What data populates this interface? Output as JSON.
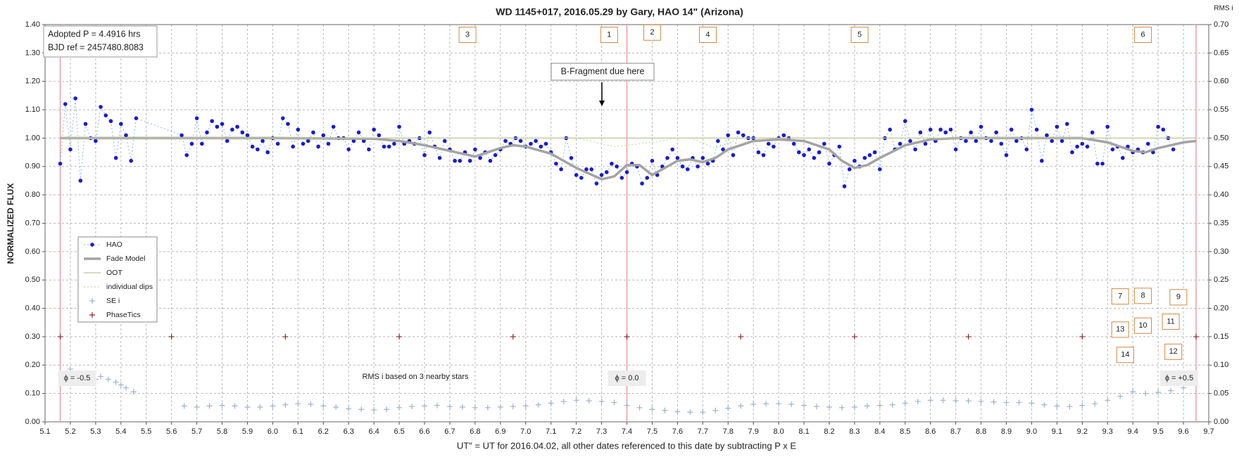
{
  "chart_data": {
    "type": "scatter",
    "title": "WD 1145+017,  2016.05.29  by Gary, HAO  14\" (Arizona)",
    "xlabel": "UT\" = UT for 2016.04.02, all other dates referenced  to this date by subtracting P x E",
    "ylabel": "NORMALIZED FLUX",
    "y2label": "RMS i",
    "info_box": [
      "Adopted P = 4.4916 hrs",
      "BJD ref = 2457480.8083"
    ],
    "arrow_note": "B-Fragment due here",
    "rms_note": "RMS i based on 3 nearby stars",
    "dip_labels": [
      "3",
      "1",
      "2",
      "4",
      "5",
      "6",
      "7",
      "8",
      "9",
      "13",
      "10",
      "11",
      "14",
      "12"
    ],
    "phase_markers": [
      {
        "x": 5.16,
        "label": "ϕ = -0.5"
      },
      {
        "x": 7.4,
        "label": "ϕ = 0.0"
      },
      {
        "x": 9.65,
        "label": "ϕ = +0.5"
      }
    ],
    "phase_line_color": "#e8a0a0",
    "xlim": [
      5.1,
      9.7
    ],
    "xticks": [
      5.1,
      5.2,
      5.3,
      5.4,
      5.5,
      5.6,
      5.7,
      5.8,
      5.9,
      {
        "value": 6,
        "label": "6.0"
      },
      6.1,
      6.2,
      6.3,
      6.4,
      6.5,
      6.6,
      6.7,
      6.8,
      6.9,
      {
        "value": 7,
        "label": "7.0"
      },
      7.1,
      7.2,
      7.3,
      7.4,
      7.5,
      7.6,
      7.7,
      7.8,
      7.9,
      {
        "value": 8,
        "label": "8.0"
      },
      8.1,
      8.2,
      8.3,
      8.4,
      8.5,
      8.6,
      8.7,
      8.8,
      8.9,
      {
        "value": 9,
        "label": "9.0"
      },
      9.1,
      9.2,
      9.3,
      9.4,
      9.5,
      9.6,
      9.7
    ],
    "ylim": [
      0,
      1.4
    ],
    "yticks": [
      {
        "value": 0,
        "label": "0.00"
      },
      {
        "value": 0.1,
        "label": "0.10"
      },
      {
        "value": 0.2,
        "label": "0.20"
      },
      {
        "value": 0.3,
        "label": "0.30"
      },
      {
        "value": 0.4,
        "label": "0.40"
      },
      {
        "value": 0.5,
        "label": "0.50"
      },
      {
        "value": 0.6,
        "label": "0.60"
      },
      {
        "value": 0.7,
        "label": "0.70"
      },
      {
        "value": 0.8,
        "label": "0.80"
      },
      {
        "value": 0.9,
        "label": "0.90"
      },
      {
        "value": 1,
        "label": "1.00"
      },
      {
        "value": 1.1,
        "label": "1.10"
      },
      {
        "value": 1.2,
        "label": "1.20"
      },
      {
        "value": 1.3,
        "label": "1.30"
      },
      {
        "value": 1.4,
        "label": "1.40"
      }
    ],
    "y2lim": [
      0,
      0.7
    ],
    "y2ticks": [
      {
        "value": 0,
        "label": "0.00"
      },
      {
        "value": 0.05,
        "label": "0.05"
      },
      {
        "value": 0.1,
        "label": "0.10"
      },
      {
        "value": 0.15,
        "label": "0.15"
      },
      {
        "value": 0.2,
        "label": "0.20"
      },
      {
        "value": 0.25,
        "label": "0.25"
      },
      {
        "value": 0.3,
        "label": "0.30"
      },
      {
        "value": 0.35,
        "label": "0.35"
      },
      {
        "value": 0.4,
        "label": "0.40"
      },
      {
        "value": 0.45,
        "label": "0.45"
      },
      {
        "value": 0.5,
        "label": "0.50"
      },
      {
        "value": 0.55,
        "label": "0.55"
      },
      {
        "value": 0.6,
        "label": "0.60"
      },
      {
        "value": 0.65,
        "label": "0.65"
      },
      {
        "value": 0.7,
        "label": "0.70"
      }
    ],
    "grid": true,
    "legend": "left",
    "series": [
      {
        "name": "HAO",
        "color": "#1a1ad0",
        "line_color": "#8fb8d8",
        "line": "dotted",
        "marker": "circle",
        "x": [
          5.16,
          5.18,
          5.2,
          5.22,
          5.24,
          5.26,
          5.28,
          5.3,
          5.32,
          5.34,
          5.36,
          5.38,
          5.4,
          5.42,
          5.44,
          5.46,
          5.64,
          5.66,
          5.68,
          5.7,
          5.72,
          5.74,
          5.76,
          5.78,
          5.8,
          5.82,
          5.84,
          5.86,
          5.88,
          5.9,
          5.92,
          5.94,
          5.96,
          5.98,
          6.0,
          6.02,
          6.04,
          6.06,
          6.08,
          6.1,
          6.12,
          6.14,
          6.16,
          6.18,
          6.2,
          6.22,
          6.24,
          6.26,
          6.28,
          6.3,
          6.32,
          6.34,
          6.36,
          6.38,
          6.4,
          6.42,
          6.44,
          6.46,
          6.48,
          6.5,
          6.52,
          6.54,
          6.56,
          6.58,
          6.6,
          6.62,
          6.64,
          6.66,
          6.68,
          6.7,
          6.72,
          6.74,
          6.76,
          6.78,
          6.8,
          6.82,
          6.84,
          6.86,
          6.88,
          6.9,
          6.92,
          6.94,
          6.96,
          6.98,
          7.0,
          7.02,
          7.04,
          7.06,
          7.08,
          7.1,
          7.12,
          7.14,
          7.16,
          7.18,
          7.2,
          7.22,
          7.24,
          7.26,
          7.28,
          7.3,
          7.32,
          7.34,
          7.36,
          7.38,
          7.4,
          7.42,
          7.44,
          7.46,
          7.48,
          7.5,
          7.52,
          7.54,
          7.56,
          7.58,
          7.6,
          7.62,
          7.64,
          7.66,
          7.68,
          7.7,
          7.72,
          7.74,
          7.76,
          7.78,
          7.8,
          7.82,
          7.84,
          7.86,
          7.88,
          7.9,
          7.92,
          7.94,
          7.96,
          7.98,
          8.0,
          8.02,
          8.04,
          8.06,
          8.08,
          8.1,
          8.12,
          8.14,
          8.16,
          8.18,
          8.2,
          8.22,
          8.24,
          8.26,
          8.28,
          8.3,
          8.32,
          8.34,
          8.36,
          8.38,
          8.4,
          8.42,
          8.44,
          8.46,
          8.48,
          8.5,
          8.52,
          8.54,
          8.56,
          8.58,
          8.6,
          8.62,
          8.64,
          8.66,
          8.68,
          8.7,
          8.72,
          8.74,
          8.76,
          8.78,
          8.8,
          8.82,
          8.84,
          8.86,
          8.88,
          8.9,
          8.92,
          8.94,
          8.96,
          8.98,
          9.0,
          9.02,
          9.04,
          9.06,
          9.08,
          9.1,
          9.12,
          9.14,
          9.16,
          9.18,
          9.2,
          9.22,
          9.24,
          9.26,
          9.28,
          9.3,
          9.32,
          9.34,
          9.36,
          9.38,
          9.4,
          9.42,
          9.44,
          9.46,
          9.48,
          9.5,
          9.52,
          9.54,
          9.56
        ],
        "values": [
          0.91,
          1.12,
          0.96,
          1.14,
          0.85,
          1.05,
          1.0,
          0.99,
          1.11,
          1.08,
          1.06,
          0.93,
          1.05,
          1.01,
          0.92,
          1.07,
          1.01,
          0.94,
          0.98,
          1.07,
          0.98,
          1.02,
          1.06,
          1.04,
          1.05,
          0.99,
          1.03,
          1.04,
          1.02,
          1.01,
          0.97,
          0.96,
          0.99,
          0.95,
          1.0,
          0.98,
          1.07,
          1.05,
          0.97,
          1.03,
          0.98,
          0.99,
          1.02,
          0.97,
          1.01,
          0.98,
          1.04,
          1.0,
          1.0,
          0.96,
          0.99,
          1.02,
          0.99,
          0.96,
          1.03,
          1.01,
          0.97,
          0.97,
          0.98,
          1.04,
          0.98,
          0.99,
          0.98,
          1.0,
          0.94,
          1.02,
          0.97,
          0.93,
          0.99,
          0.96,
          0.92,
          0.92,
          0.95,
          0.92,
          0.96,
          0.93,
          0.95,
          0.92,
          0.94,
          0.96,
          0.99,
          0.98,
          1.0,
          0.99,
          0.97,
          0.98,
          0.99,
          0.97,
          0.98,
          0.95,
          0.91,
          0.89,
          1.0,
          0.93,
          0.87,
          0.86,
          0.89,
          0.89,
          0.84,
          0.87,
          0.88,
          0.91,
          0.9,
          0.86,
          0.88,
          0.91,
          0.9,
          0.84,
          0.86,
          0.92,
          0.87,
          0.9,
          0.93,
          0.96,
          0.93,
          0.9,
          0.89,
          0.93,
          0.9,
          0.93,
          0.91,
          0.92,
          0.99,
          0.96,
          1.01,
          0.94,
          1.02,
          1.01,
          1.0,
          1.0,
          0.95,
          0.94,
          0.98,
          0.97,
          1.0,
          1.01,
          1.0,
          0.98,
          0.95,
          0.94,
          0.96,
          0.93,
          0.95,
          0.98,
          0.91,
          0.94,
          0.97,
          0.83,
          0.89,
          0.92,
          0.9,
          0.93,
          0.94,
          0.95,
          0.89,
          1.0,
          1.03,
          0.96,
          0.98,
          1.06,
          0.99,
          0.96,
          1.02,
          0.98,
          1.03,
          0.99,
          1.03,
          1.02,
          1.03,
          0.96,
          1.0,
          0.99,
          1.02,
          0.99,
          1.04,
          1.0,
          0.99,
          1.02,
          0.98,
          0.94,
          1.03,
          0.99,
          1.0,
          0.96,
          1.1,
          1.03,
          0.92,
          1.01,
          0.99,
          1.04,
          0.99,
          1.05,
          0.95,
          0.97,
          0.98,
          0.97,
          1.02,
          0.91,
          0.91,
          1.04,
          0.96,
          0.97,
          0.93,
          0.97,
          0.95,
          0.96,
          0.95,
          0.98,
          0.95,
          1.04,
          1.03,
          1.0,
          0.96
        ]
      },
      {
        "name": "Fade Model",
        "color": "#a3a3a3",
        "line": "thick",
        "marker": "none",
        "x": [
          5.16,
          6.0,
          6.4,
          6.5,
          6.6,
          6.7,
          6.8,
          6.9,
          6.95,
          7.0,
          7.1,
          7.2,
          7.3,
          7.35,
          7.4,
          7.45,
          7.5,
          7.55,
          7.6,
          7.65,
          7.7,
          7.75,
          7.8,
          7.9,
          8.0,
          8.1,
          8.2,
          8.25,
          8.3,
          8.35,
          8.4,
          8.5,
          8.6,
          8.7,
          9.2,
          9.3,
          9.4,
          9.45,
          9.5,
          9.6,
          9.65
        ],
        "values": [
          1.0,
          1.0,
          0.998,
          0.99,
          0.975,
          0.955,
          0.935,
          0.965,
          0.975,
          0.97,
          0.945,
          0.895,
          0.855,
          0.865,
          0.905,
          0.905,
          0.87,
          0.895,
          0.92,
          0.925,
          0.915,
          0.93,
          0.96,
          0.99,
          0.995,
          0.99,
          0.96,
          0.92,
          0.895,
          0.905,
          0.93,
          0.975,
          0.995,
          1.0,
          1.0,
          0.985,
          0.955,
          0.95,
          0.965,
          0.985,
          0.99
        ]
      },
      {
        "name": "OOT",
        "color": "#b9c79a",
        "line": "solid",
        "marker": "none",
        "x": [
          5.16,
          9.65
        ],
        "values": [
          1.0,
          1.0
        ]
      },
      {
        "name": "individual dips",
        "color": "#c6d49a",
        "line": "dotted",
        "marker": "none",
        "x": [
          7.2,
          7.35,
          7.5,
          7.6,
          7.62,
          7.65,
          7.75,
          7.85
        ],
        "values": [
          1.0,
          0.97,
          0.985,
          1.0,
          null,
          1.0,
          0.965,
          1.0
        ]
      },
      {
        "name": "SE i",
        "color": "#9fb3c8",
        "line": "none",
        "marker": "plus",
        "axis": "y2",
        "x": [
          5.2,
          5.25,
          5.3,
          5.32,
          5.35,
          5.38,
          5.4,
          5.42,
          5.45,
          5.65,
          5.7,
          5.75,
          5.8,
          5.85,
          5.9,
          5.95,
          6.0,
          6.05,
          6.1,
          6.15,
          6.2,
          6.25,
          6.3,
          6.35,
          6.4,
          6.45,
          6.5,
          6.55,
          6.6,
          6.65,
          6.7,
          6.75,
          6.8,
          6.85,
          6.9,
          6.95,
          7.0,
          7.05,
          7.1,
          7.15,
          7.2,
          7.25,
          7.3,
          7.35,
          7.4,
          7.45,
          7.5,
          7.55,
          7.6,
          7.65,
          7.7,
          7.75,
          7.8,
          7.85,
          7.9,
          7.95,
          8.0,
          8.05,
          8.1,
          8.15,
          8.2,
          8.25,
          8.3,
          8.35,
          8.4,
          8.45,
          8.5,
          8.55,
          8.6,
          8.65,
          8.7,
          8.75,
          8.8,
          8.85,
          8.9,
          8.95,
          9.0,
          9.05,
          9.1,
          9.15,
          9.2,
          9.25,
          9.3,
          9.35,
          9.4,
          9.45,
          9.5,
          9.55,
          9.6
        ],
        "values": [
          0.093,
          0.085,
          0.075,
          0.08,
          0.075,
          0.07,
          0.065,
          0.06,
          0.053,
          0.028,
          0.026,
          0.028,
          0.029,
          0.028,
          0.026,
          0.026,
          0.028,
          0.03,
          0.032,
          0.031,
          0.028,
          0.026,
          0.023,
          0.022,
          0.021,
          0.022,
          0.025,
          0.027,
          0.028,
          0.029,
          0.027,
          0.026,
          0.025,
          0.025,
          0.026,
          0.027,
          0.028,
          0.03,
          0.033,
          0.036,
          0.038,
          0.037,
          0.036,
          0.034,
          0.029,
          0.025,
          0.022,
          0.02,
          0.018,
          0.017,
          0.017,
          0.02,
          0.024,
          0.028,
          0.031,
          0.032,
          0.032,
          0.031,
          0.029,
          0.027,
          0.026,
          0.025,
          0.026,
          0.028,
          0.029,
          0.03,
          0.033,
          0.036,
          0.038,
          0.038,
          0.037,
          0.037,
          0.036,
          0.035,
          0.034,
          0.034,
          0.033,
          0.03,
          0.028,
          0.027,
          0.029,
          0.032,
          0.038,
          0.045,
          0.053,
          0.05,
          0.052,
          0.055,
          0.06
        ]
      },
      {
        "name": "PhaseTics",
        "color": "#8b2a2a",
        "line": "none",
        "marker": "plus",
        "x": [
          5.16,
          5.6,
          6.05,
          6.5,
          6.95,
          7.4,
          7.85,
          8.3,
          8.75,
          9.2,
          9.65
        ],
        "values": [
          0.3,
          0.3,
          0.3,
          0.3,
          0.3,
          0.3,
          0.3,
          0.3,
          0.3,
          0.3,
          0.3
        ]
      }
    ]
  }
}
